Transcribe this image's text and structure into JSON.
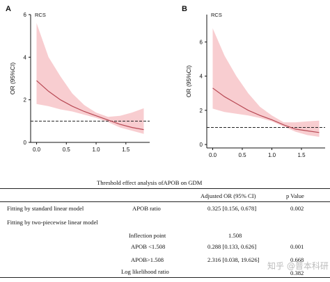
{
  "chart_data": [
    {
      "panel_letter": "A",
      "type": "line",
      "title": "RCS",
      "ylabel": "OR (95%CI)",
      "xlabel": "",
      "xlim": [
        -0.1,
        1.9
      ],
      "ylim": [
        0,
        6
      ],
      "xticks": [
        "0.0",
        "0.5",
        "1.0",
        "1.5"
      ],
      "yticks": [
        "0",
        "2",
        "4",
        "6"
      ],
      "reference_line": 1,
      "series": [
        {
          "x": [
            0.0,
            0.2,
            0.4,
            0.6,
            0.8,
            1.0,
            1.2,
            1.4,
            1.6,
            1.8
          ],
          "y": [
            2.9,
            2.4,
            2.0,
            1.7,
            1.45,
            1.25,
            1.05,
            0.85,
            0.7,
            0.6
          ],
          "lower": [
            1.8,
            1.7,
            1.55,
            1.45,
            1.3,
            1.15,
            0.95,
            0.7,
            0.55,
            0.4
          ],
          "upper": [
            5.6,
            4.0,
            3.1,
            2.3,
            1.75,
            1.4,
            1.2,
            1.25,
            1.4,
            1.6
          ]
        }
      ]
    },
    {
      "panel_letter": "B",
      "type": "line",
      "title": "RCS",
      "ylabel": "OR (95%CI)",
      "xlabel": "",
      "xlim": [
        -0.1,
        1.9
      ],
      "ylim": [
        -0.2,
        7.6
      ],
      "xticks": [
        "0.0",
        "0.5",
        "1.0",
        "1.5"
      ],
      "yticks": [
        "0",
        "2",
        "4",
        "6"
      ],
      "reference_line": 1,
      "series": [
        {
          "x": [
            0.0,
            0.2,
            0.4,
            0.6,
            0.8,
            1.0,
            1.2,
            1.4,
            1.6,
            1.8
          ],
          "y": [
            3.3,
            2.8,
            2.4,
            2.0,
            1.7,
            1.45,
            1.15,
            0.9,
            0.8,
            0.7
          ],
          "lower": [
            2.1,
            1.9,
            1.8,
            1.7,
            1.55,
            1.35,
            1.05,
            0.75,
            0.55,
            0.45
          ],
          "upper": [
            6.8,
            5.2,
            4.0,
            3.0,
            2.2,
            1.7,
            1.3,
            1.3,
            1.35,
            1.4
          ]
        }
      ]
    }
  ],
  "table": {
    "title": "Threshold effect analysis ofAPOB on GDM",
    "headers": [
      "Adjusted OR (95% CI)",
      "p Value"
    ],
    "rows": [
      {
        "label": "Fitting by standard linear model",
        "var": "APOB ratio",
        "or": "0.325 [0.156, 0.678]",
        "p": "0.002"
      },
      {
        "label": "Fitting by two-piecewise linear model",
        "var": "",
        "or": "",
        "p": ""
      },
      {
        "label": "",
        "var": "Inflection point",
        "or": "1.508",
        "p": ""
      },
      {
        "label": "",
        "var": "APOB <1.508",
        "or": "0.288 [0.133, 0.626]",
        "p": "0.001"
      },
      {
        "label": "",
        "var": "APOB>1.508",
        "or": "2.316 [0.038, 19.626]",
        "p": "0.668"
      },
      {
        "label": "",
        "var": "Log likelihood ratio",
        "or": "",
        "p": "0.382"
      }
    ]
  },
  "watermark": "知乎 @普本科研",
  "colors": {
    "line": "#b84a55",
    "band": "#f7c4c8",
    "axis": "#111111"
  }
}
